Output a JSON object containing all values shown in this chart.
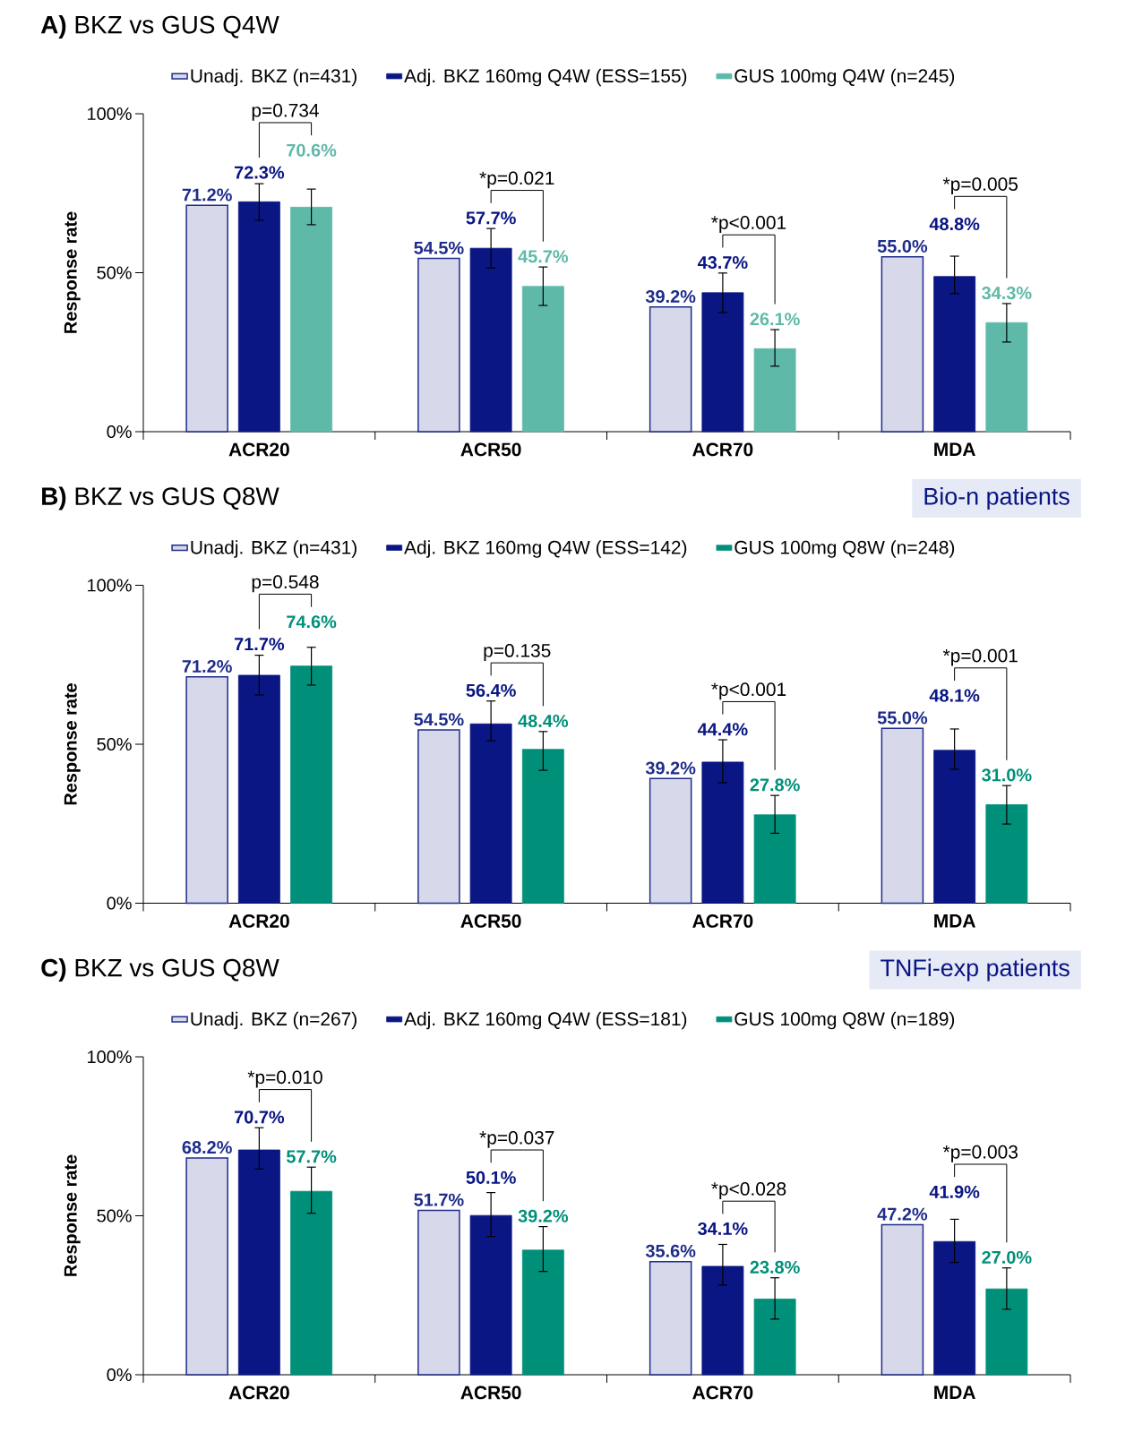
{
  "chart_data": [
    {
      "type": "bar",
      "title": "**A)** BKZ vs GUS Q4W",
      "ylabel": "Response rate",
      "categories": [
        "ACR20",
        "ACR50",
        "ACR70",
        "MDA"
      ],
      "ylim": [
        0,
        100
      ],
      "yticks": [
        {
          "value": 0,
          "label": "0%"
        },
        {
          "value": 50,
          "label": "50%"
        },
        {
          "value": 100,
          "label": "100%"
        }
      ],
      "legend": "top",
      "series": [
        {
          "name": "Unadj. BKZ (n=431)",
          "color": "#1f2d8a",
          "values": [
            71.2,
            54.5,
            39.2,
            55.0
          ],
          "value_labels": [
            "71.2%",
            "54.5%",
            "39.2%",
            "55.0%"
          ]
        },
        {
          "name": "Adj. BKZ 160mg Q4W (ESS=155)",
          "color": "#0a1683",
          "values": [
            72.3,
            57.7,
            43.7,
            48.8
          ],
          "errors": [
            [
              66.5,
              78.0
            ],
            [
              51.5,
              63.9
            ],
            [
              37.5,
              49.9
            ],
            [
              43.4,
              55.2
            ]
          ],
          "value_labels": [
            "72.3%",
            "57.7%",
            "43.7%",
            "48.8%"
          ]
        },
        {
          "name": "GUS 100mg Q4W (n=245)",
          "color": "#5fb9a8",
          "values": [
            70.6,
            45.7,
            26.1,
            34.3
          ],
          "errors": [
            [
              65.1,
              76.3
            ],
            [
              39.7,
              51.8
            ],
            [
              20.6,
              32.1
            ],
            [
              28.2,
              40.3
            ]
          ],
          "value_labels": [
            "70.6%",
            "45.7%",
            "26.1%",
            "34.3%"
          ]
        }
      ],
      "annotations": [
        "p=0.734",
        "*p=0.021",
        "*p<0.001",
        "*p=0.005"
      ]
    },
    {
      "type": "bar",
      "title": "**B)** BKZ vs GUS Q8W",
      "subtitle": "Bio-n patients",
      "ylabel": "Response rate",
      "categories": [
        "ACR20",
        "ACR50",
        "ACR70",
        "MDA"
      ],
      "ylim": [
        0,
        100
      ],
      "yticks": [
        {
          "value": 0,
          "label": "0%"
        },
        {
          "value": 50,
          "label": "50%"
        },
        {
          "value": 100,
          "label": "100%"
        }
      ],
      "legend": "top",
      "series": [
        {
          "name": "Unadj. BKZ (n=431)",
          "color": "#1f2d8a",
          "values": [
            71.2,
            54.5,
            39.2,
            55.0
          ],
          "value_labels": [
            "71.2%",
            "54.5%",
            "39.2%",
            "55.0%"
          ]
        },
        {
          "name": "Adj. BKZ 160mg Q4W (ESS=142)",
          "color": "#0a1683",
          "values": [
            71.7,
            56.4,
            44.4,
            48.1
          ],
          "errors": [
            [
              65.5,
              78.0
            ],
            [
              51.1,
              63.6
            ],
            [
              37.9,
              51.4
            ],
            [
              42.1,
              54.8
            ]
          ],
          "value_labels": [
            "71.7%",
            "56.4%",
            "44.4%",
            "48.1%"
          ]
        },
        {
          "name": "GUS 100mg Q8W (n=248)",
          "color": "#00907a",
          "values": [
            74.6,
            48.4,
            27.8,
            31.0
          ],
          "errors": [
            [
              68.6,
              80.5
            ],
            [
              41.8,
              54.0
            ],
            [
              22.0,
              33.9
            ],
            [
              24.9,
              37.0
            ]
          ],
          "value_labels": [
            "74.6%",
            "48.4%",
            "27.8%",
            "31.0%"
          ]
        }
      ],
      "annotations": [
        "p=0.548",
        "p=0.135",
        "*p<0.001",
        "*p=0.001"
      ]
    },
    {
      "type": "bar",
      "title": "**C)** BKZ vs GUS Q8W",
      "subtitle": "TNFi-exp patients",
      "ylabel": "Response rate",
      "categories": [
        "ACR20",
        "ACR50",
        "ACR70",
        "MDA"
      ],
      "ylim": [
        0,
        100
      ],
      "yticks": [
        {
          "value": 0,
          "label": "0%"
        },
        {
          "value": 50,
          "label": "50%"
        },
        {
          "value": 100,
          "label": "100%"
        }
      ],
      "legend": "top",
      "series": [
        {
          "name": "Unadj. BKZ (n=267)",
          "color": "#1f2d8a",
          "values": [
            68.2,
            51.7,
            35.6,
            47.2
          ],
          "value_labels": [
            "68.2%",
            "51.7%",
            "35.6%",
            "47.2%"
          ]
        },
        {
          "name": "Adj. BKZ 160mg Q4W (ESS=181)",
          "color": "#0a1683",
          "values": [
            70.7,
            50.1,
            34.1,
            41.9
          ],
          "errors": [
            [
              64.7,
              77.7
            ],
            [
              43.5,
              57.3
            ],
            [
              28.2,
              41.0
            ],
            [
              35.3,
              48.9
            ]
          ],
          "value_labels": [
            "70.7%",
            "50.1%",
            "34.1%",
            "41.9%"
          ]
        },
        {
          "name": "GUS 100mg Q8W (n=189)",
          "color": "#00907a",
          "values": [
            57.7,
            39.2,
            23.8,
            27.0
          ],
          "errors": [
            [
              50.8,
              65.3
            ],
            [
              32.5,
              46.6
            ],
            [
              17.5,
              30.5
            ],
            [
              20.6,
              33.6
            ]
          ],
          "value_labels": [
            "57.7%",
            "39.2%",
            "23.8%",
            "27.0%"
          ]
        }
      ],
      "annotations": [
        "*p=0.010",
        "*p=0.037",
        "*p<0.028",
        "*p=0.003"
      ]
    }
  ]
}
